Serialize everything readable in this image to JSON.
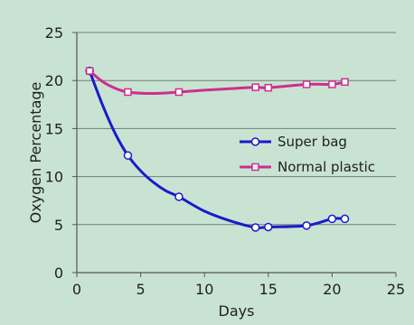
{
  "chart_data": {
    "type": "line",
    "title": "",
    "xlabel": "Days",
    "ylabel": "Oxygen Percentage",
    "xlim": [
      0,
      25
    ],
    "ylim": [
      0,
      25
    ],
    "xticks": [
      0,
      5,
      10,
      15,
      20,
      25
    ],
    "yticks": [
      0,
      5,
      10,
      15,
      20,
      25
    ],
    "grid": "horizontal",
    "legend_position": "center-right",
    "background_color": "#c9e3d3",
    "series": [
      {
        "name": "Super bag",
        "color": "#1a1acc",
        "marker": "circle",
        "x": [
          1,
          4,
          8,
          14,
          15,
          18,
          20,
          21
        ],
        "y": [
          21,
          12.2,
          7.9,
          4.7,
          4.75,
          4.9,
          5.6,
          5.6
        ],
        "curve": [
          [
            1,
            21
          ],
          [
            2,
            17.5
          ],
          [
            3,
            14.5
          ],
          [
            4,
            12.2
          ],
          [
            5,
            10.6
          ],
          [
            6,
            9.4
          ],
          [
            7,
            8.5
          ],
          [
            8,
            7.9
          ],
          [
            10,
            6.4
          ],
          [
            12,
            5.4
          ],
          [
            14,
            4.7
          ],
          [
            15,
            4.75
          ],
          [
            18,
            4.9
          ],
          [
            20,
            5.6
          ],
          [
            21,
            5.6
          ]
        ]
      },
      {
        "name": "Normal plastic",
        "color": "#cc2f8f",
        "marker": "square",
        "x": [
          1,
          4,
          8,
          14,
          15,
          18,
          20,
          21
        ],
        "y": [
          21,
          18.8,
          18.8,
          19.3,
          19.25,
          19.6,
          19.6,
          19.85
        ],
        "curve": [
          [
            1,
            21
          ],
          [
            2,
            19.9
          ],
          [
            3,
            19.2
          ],
          [
            4,
            18.8
          ],
          [
            6,
            18.65
          ],
          [
            8,
            18.8
          ],
          [
            10,
            19.0
          ],
          [
            12,
            19.15
          ],
          [
            14,
            19.3
          ],
          [
            15,
            19.25
          ],
          [
            18,
            19.6
          ],
          [
            20,
            19.6
          ],
          [
            21,
            19.85
          ]
        ]
      }
    ]
  }
}
